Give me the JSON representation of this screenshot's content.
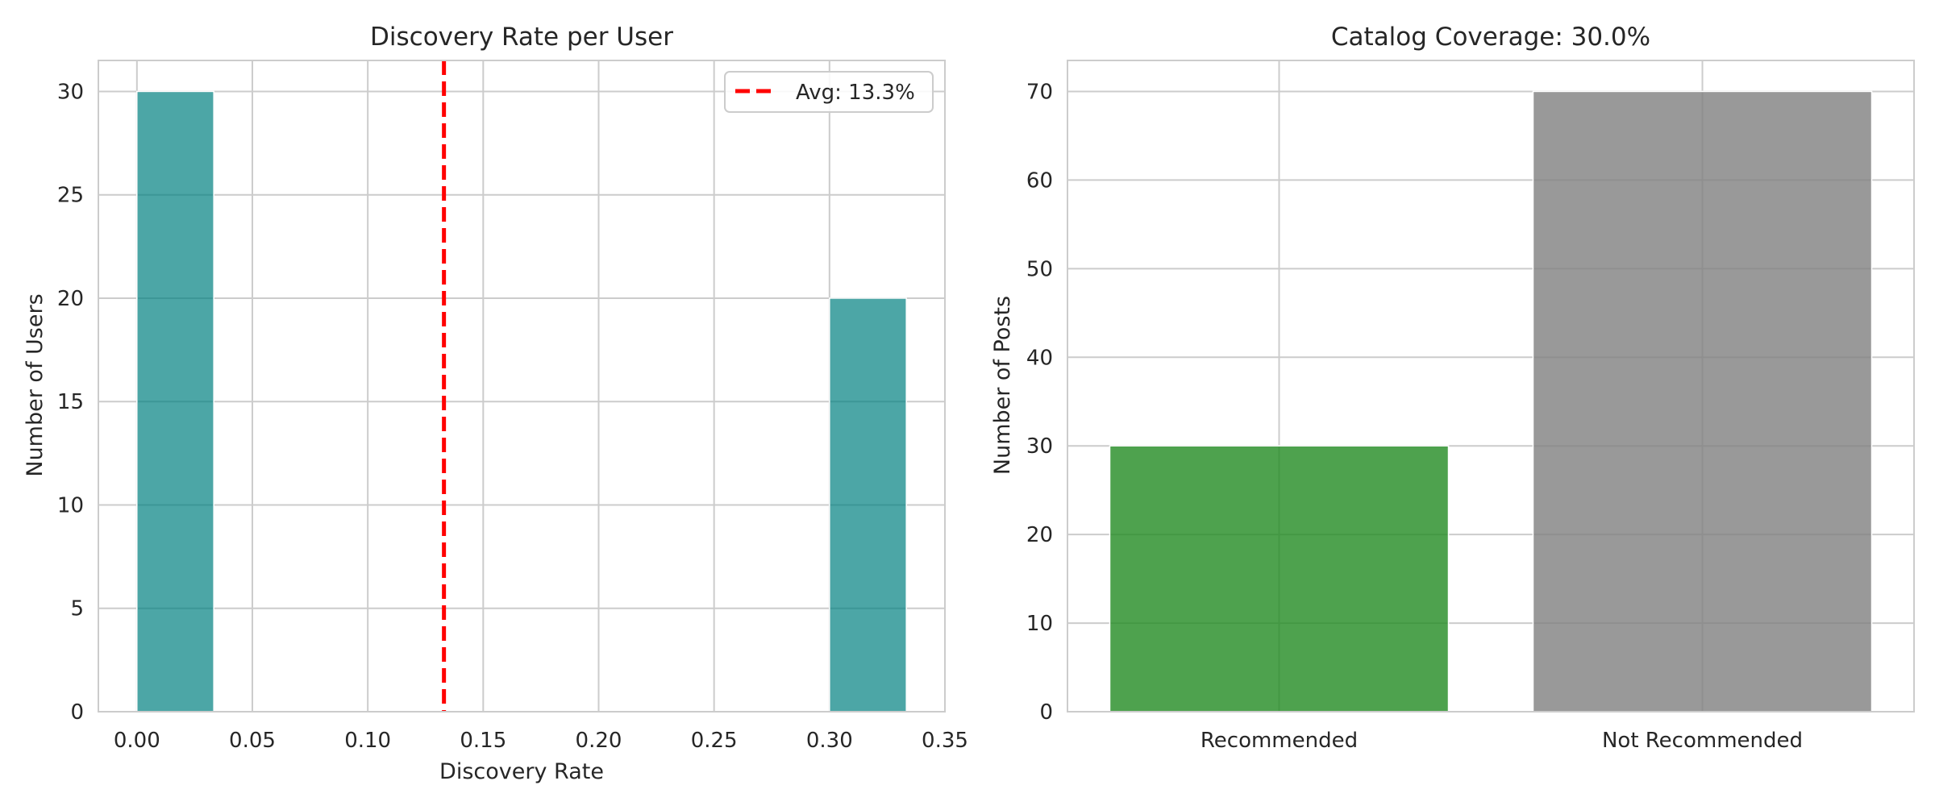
{
  "chart_data": [
    {
      "type": "bar",
      "subtype": "histogram",
      "title": "Discovery Rate per User",
      "xlabel": "Discovery Rate",
      "ylabel": "Number of Users",
      "xlim": [
        -0.0167,
        0.35
      ],
      "ylim": [
        0,
        31.5
      ],
      "xticks": [
        "0.00",
        "0.05",
        "0.10",
        "0.15",
        "0.20",
        "0.25",
        "0.30",
        "0.35"
      ],
      "yticks": [
        "0",
        "5",
        "10",
        "15",
        "20",
        "25",
        "30"
      ],
      "bins": [
        {
          "x0": 0.0,
          "x1": 0.0333,
          "count": 30
        },
        {
          "x0": 0.3,
          "x1": 0.3333,
          "count": 20
        }
      ],
      "color": "#008080",
      "avg_line": {
        "value": 0.133,
        "label": "Avg: 13.3%",
        "color": "#ff0000",
        "style": "dashed"
      },
      "legend": {
        "position": "top-right",
        "entries": [
          "Avg: 13.3%"
        ]
      },
      "grid": true
    },
    {
      "type": "bar",
      "title": "Catalog Coverage: 30.0%",
      "xlabel": "",
      "ylabel": "Number of Posts",
      "categories": [
        "Recommended",
        "Not Recommended"
      ],
      "values": [
        30,
        70
      ],
      "colors": [
        "#228b22",
        "#808080"
      ],
      "ylim": [
        0,
        73.5
      ],
      "yticks": [
        "0",
        "10",
        "20",
        "30",
        "40",
        "50",
        "60",
        "70"
      ],
      "grid": true
    }
  ]
}
